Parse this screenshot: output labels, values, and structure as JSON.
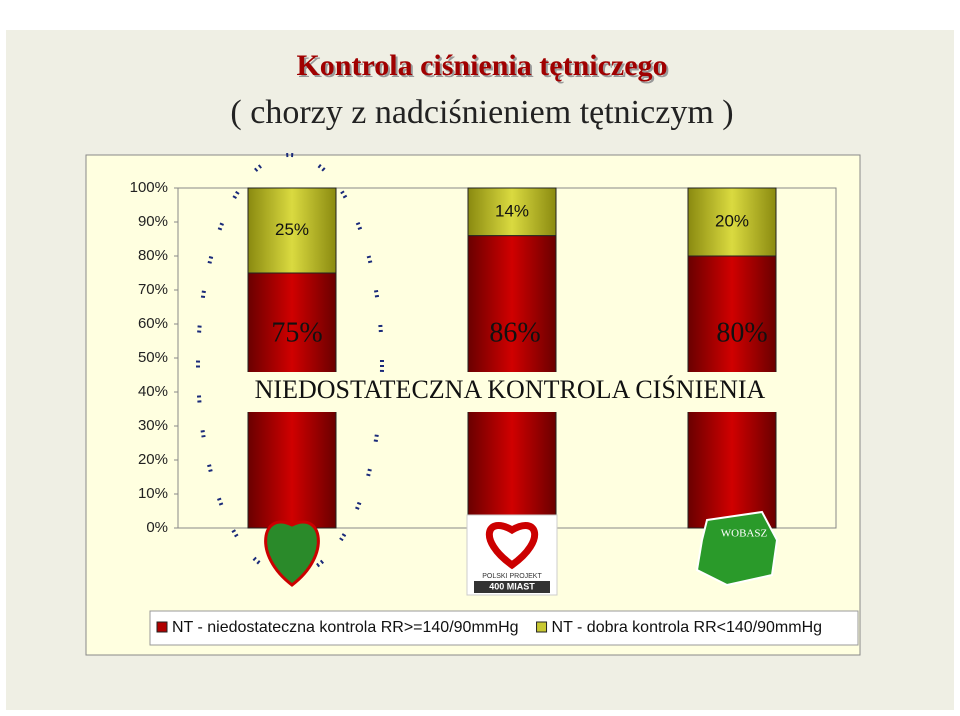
{
  "chart_data": {
    "type": "stacked-bar",
    "title": "Kontrola ciśnienia tętniczego",
    "subtitle": "( chorzy z nadciśnieniem tętniczym )",
    "annotation": "NIEDOSTATECZNA KONTROLA CIŚNIENIA",
    "logo_labels": [
      "POLSKI PROJEKT",
      "400 MIAST",
      "WOBASZ"
    ],
    "categories": [
      null,
      null,
      null
    ],
    "series": [
      {
        "name": "NT - niedostateczna kontrola RR>=140/90mmHg",
        "color": "#b00000",
        "values": [
          75,
          86,
          80
        ],
        "value_labels": [
          "75%",
          "86%",
          "80%"
        ]
      },
      {
        "name": "NT - dobra kontrola RR<140/90mmHg",
        "color": "#c8c832",
        "values": [
          25,
          14,
          20
        ],
        "value_labels": [
          "25%",
          "14%",
          "20%"
        ]
      }
    ],
    "ylim": [
      0,
      100
    ],
    "yticks": [
      {
        "value": 0,
        "label": "0%"
      },
      {
        "value": 10,
        "label": "10%"
      },
      {
        "value": 20,
        "label": "20%"
      },
      {
        "value": 30,
        "label": "30%"
      },
      {
        "value": 40,
        "label": "40%"
      },
      {
        "value": 50,
        "label": "50%"
      },
      {
        "value": 60,
        "label": "60%"
      },
      {
        "value": 70,
        "label": "70%"
      },
      {
        "value": 80,
        "label": "80%"
      },
      {
        "value": 90,
        "label": "90%"
      },
      {
        "value": 100,
        "label": "100%"
      }
    ],
    "legend": "bottom"
  }
}
